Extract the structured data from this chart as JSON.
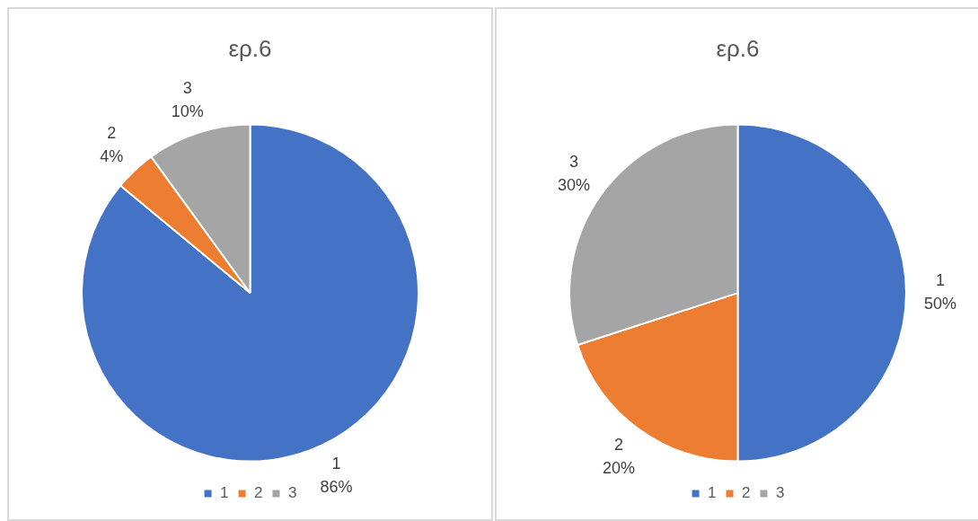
{
  "chart_data": [
    {
      "type": "pie",
      "title": "ερ.6",
      "categories": [
        "1",
        "2",
        "3"
      ],
      "values": [
        86,
        4,
        10
      ],
      "value_labels": [
        "86%",
        "4%",
        "10%"
      ],
      "colors": [
        "#4472c4",
        "#ed7d31",
        "#a5a5a5"
      ],
      "legend": "bottom"
    },
    {
      "type": "pie",
      "title": "ερ.6",
      "categories": [
        "1",
        "2",
        "3"
      ],
      "values": [
        50,
        20,
        30
      ],
      "value_labels": [
        "50%",
        "20%",
        "30%"
      ],
      "colors": [
        "#4472c4",
        "#ed7d31",
        "#a5a5a5"
      ],
      "legend": "bottom"
    }
  ]
}
